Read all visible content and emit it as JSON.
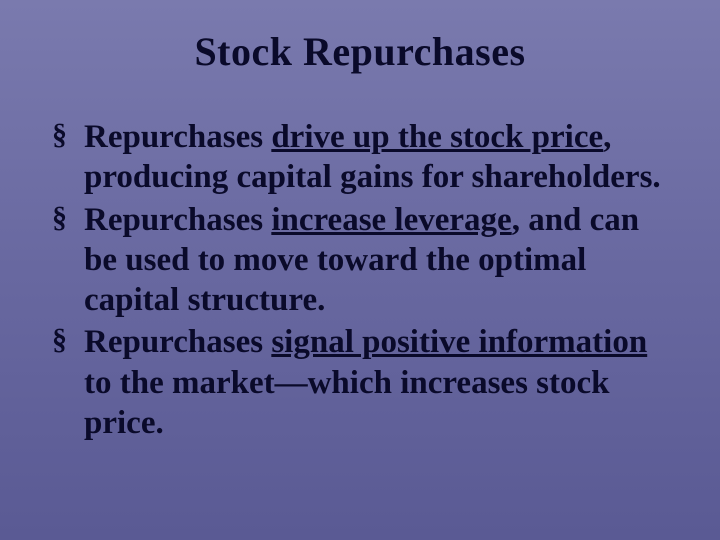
{
  "slide": {
    "title": "Stock Repurchases",
    "title_fontsize": 40,
    "body_fontsize": 33,
    "background_gradient": [
      "#7a7aae",
      "#6868a0",
      "#5a5a94"
    ],
    "text_color": "#0a0a2a",
    "bullet_marker": "§",
    "bullets": [
      {
        "prefix": "Repurchases ",
        "underlined": "drive up the stock price",
        "suffix": ", producing capital gains for shareholders."
      },
      {
        "prefix": "Repurchases ",
        "underlined": "increase leverage",
        "suffix": ", and can be used to move toward the optimal capital structure."
      },
      {
        "prefix": "Repurchases ",
        "underlined": "signal positive information",
        "suffix": " to the market—which increases stock price."
      }
    ]
  }
}
